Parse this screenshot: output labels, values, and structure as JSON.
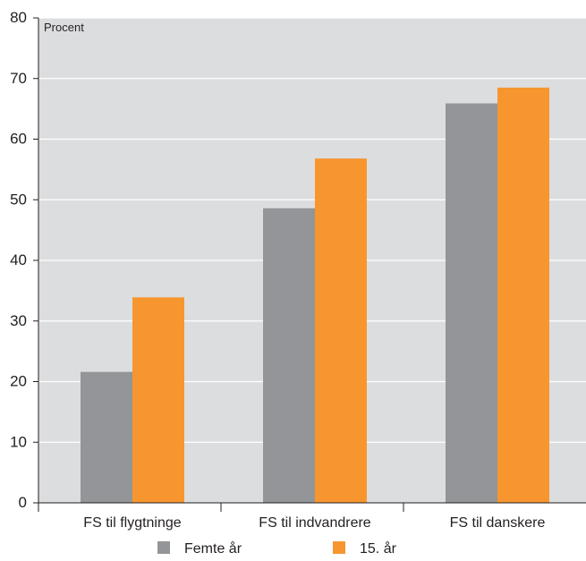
{
  "chart_data": {
    "type": "bar",
    "unit_label": "Procent",
    "categories": [
      "FS til flygtninge",
      "FS til indvandrere",
      "FS til danskere"
    ],
    "series": [
      {
        "name": "Femte år",
        "color": "#939598",
        "values": [
          21.6,
          48.6,
          65.9
        ]
      },
      {
        "name": "15. år",
        "color": "#f7962f",
        "values": [
          33.9,
          56.8,
          68.5
        ]
      }
    ],
    "ylim": [
      0,
      80
    ],
    "yticks": [
      0,
      10,
      20,
      30,
      40,
      50,
      60,
      70,
      80
    ],
    "grid": true,
    "legend_position": "bottom",
    "plot_background": "#dcdddf"
  }
}
